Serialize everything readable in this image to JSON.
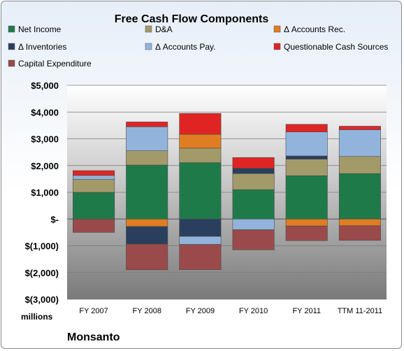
{
  "chart_data": {
    "type": "bar",
    "stacked": true,
    "title": "Free Cash Flow Components",
    "categories": [
      "FY 2007",
      "FY 2008",
      "FY 2009",
      "FY 2010",
      "FY 2011",
      "TTM 11-2011"
    ],
    "series": [
      {
        "name": "Net Income",
        "color": "#1f7a4a",
        "values": [
          1000,
          2020,
          2110,
          1100,
          1620,
          1700
        ]
      },
      {
        "name": "D&A",
        "color": "#a39a6a",
        "values": [
          480,
          530,
          540,
          600,
          620,
          640
        ]
      },
      {
        "name": "Δ Accounts Rec.",
        "color": "#e07c22",
        "values": [
          0,
          -280,
          520,
          0,
          -260,
          -250
        ]
      },
      {
        "name": "Δ Inventories",
        "color": "#2a3f5e",
        "values": [
          0,
          -660,
          -650,
          200,
          120,
          0
        ]
      },
      {
        "name": "Δ Accounts Pay.",
        "color": "#92b4dc",
        "values": [
          150,
          900,
          -300,
          -400,
          900,
          1000
        ]
      },
      {
        "name": "Questionable Cash Sources",
        "color": "#e02424",
        "values": [
          180,
          180,
          780,
          400,
          280,
          130
        ]
      },
      {
        "name": "Capital Expenditure",
        "color": "#9a4a4a",
        "values": [
          -500,
          -960,
          -940,
          -750,
          -550,
          -550
        ]
      }
    ],
    "yticks": [
      "$5,000",
      "$4,000",
      "$3,000",
      "$2,000",
      "$1,000",
      "$-",
      "$(1,000)",
      "$(2,000)",
      "$(3,000)"
    ],
    "ylim": [
      -3000,
      5000
    ],
    "ylabel": "millions",
    "grid": true,
    "legend": "top"
  },
  "footer": {
    "company": "Monsanto"
  }
}
